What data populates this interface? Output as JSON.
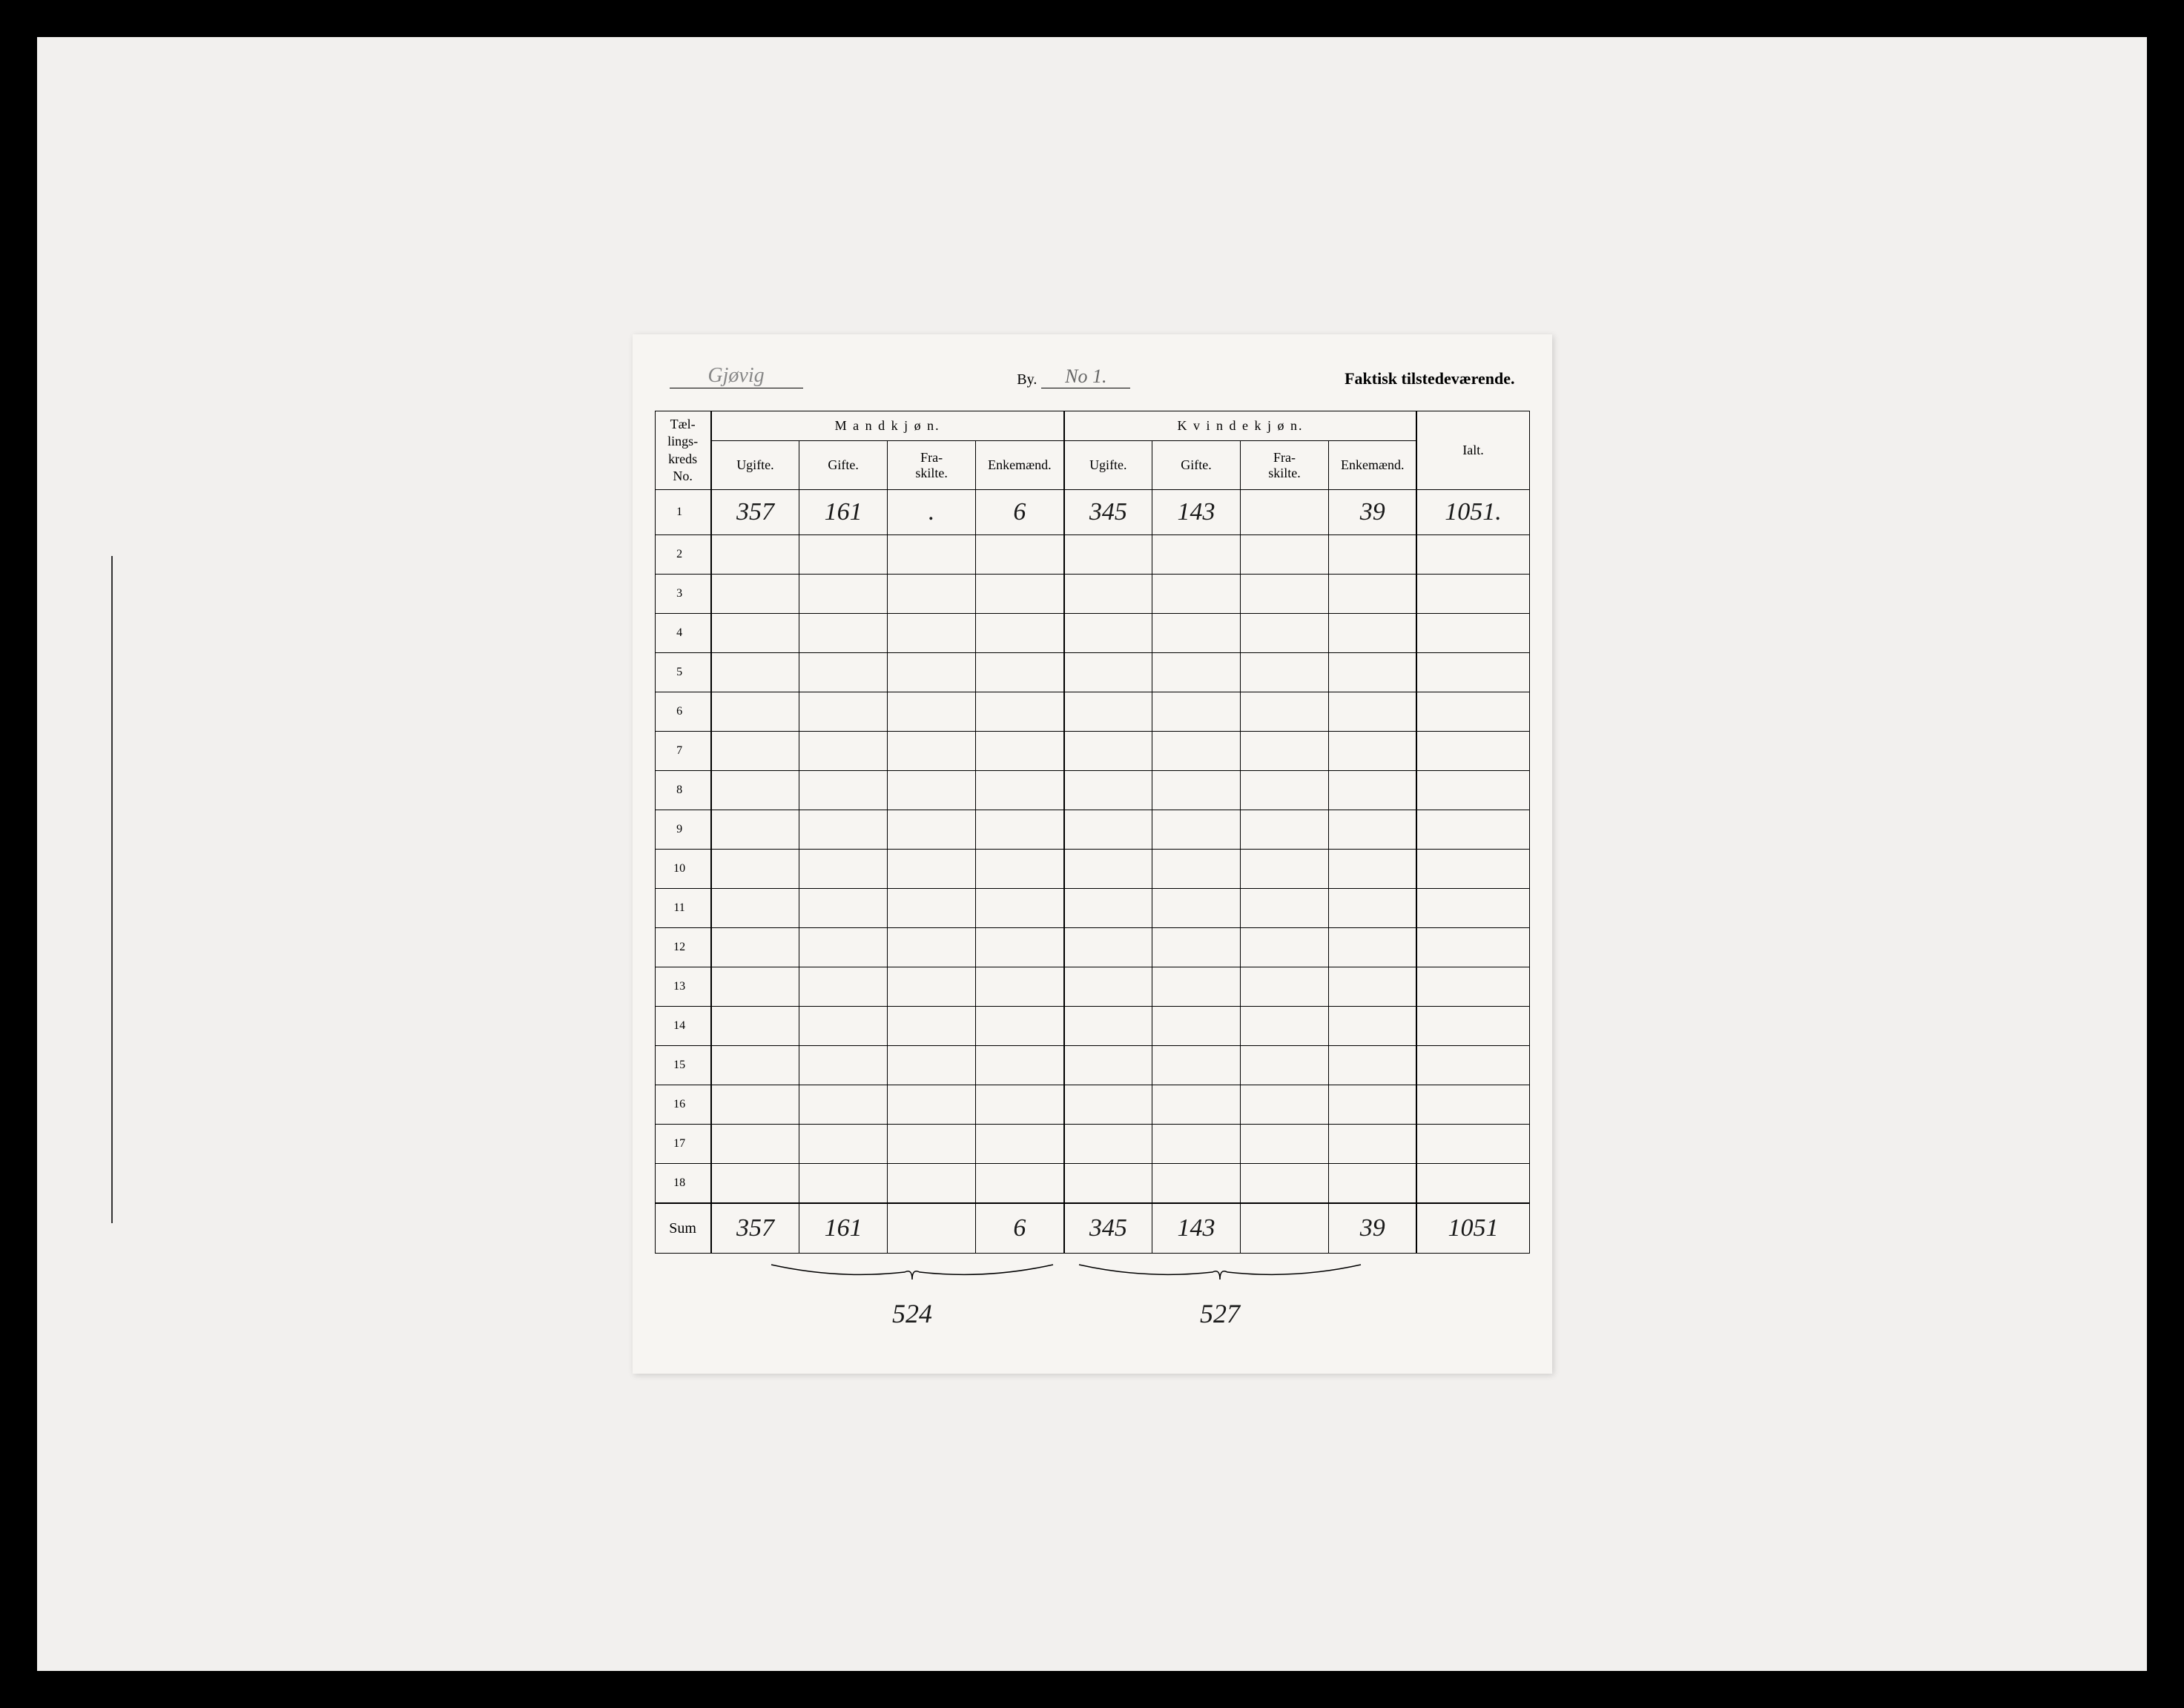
{
  "header": {
    "place_name": "Gjøvig",
    "by_label": "By.",
    "by_value": "No 1.",
    "title_right": "Faktisk tilstedeværende."
  },
  "table": {
    "rowno_header": "Tæl-\nlings-\nkreds\nNo.",
    "group_male": "M a n d k j ø n.",
    "group_female": "K v i n d e k j ø n.",
    "ialt_header": "Ialt.",
    "subheaders": {
      "ugifte": "Ugifte.",
      "gifte": "Gifte.",
      "fraskilte": "Fra-\nskilte.",
      "enkemaend": "Enkemænd.",
      "enkemaend_f": "Enkemænd."
    },
    "rows": [
      {
        "no": "1",
        "m_ugifte": "357",
        "m_gifte": "161",
        "m_fraskilte": ".",
        "m_enke": "6",
        "k_ugifte": "345",
        "k_gifte": "143",
        "k_fraskilte": "",
        "k_enke": "39",
        "ialt": "1051."
      },
      {
        "no": "2"
      },
      {
        "no": "3"
      },
      {
        "no": "4"
      },
      {
        "no": "5"
      },
      {
        "no": "6"
      },
      {
        "no": "7"
      },
      {
        "no": "8"
      },
      {
        "no": "9"
      },
      {
        "no": "10"
      },
      {
        "no": "11"
      },
      {
        "no": "12"
      },
      {
        "no": "13"
      },
      {
        "no": "14"
      },
      {
        "no": "15"
      },
      {
        "no": "16"
      },
      {
        "no": "17"
      },
      {
        "no": "18"
      }
    ],
    "sum_label": "Sum",
    "sum": {
      "m_ugifte": "357",
      "m_gifte": "161",
      "m_fraskilte": "",
      "m_enke": "6",
      "k_ugifte": "345",
      "k_gifte": "143",
      "k_fraskilte": "",
      "k_enke": "39",
      "ialt": "1051"
    }
  },
  "subtotals": {
    "male": "524",
    "female": "527"
  },
  "styling": {
    "background_color": "#000000",
    "paper_color": "#f2f0ee",
    "document_color": "#f7f5f2",
    "ink_color": "#1a1a1a",
    "handwriting_font": "cursive italic",
    "print_font": "Times New Roman serif",
    "header_fontsize": 22,
    "subheader_fontsize": 18,
    "data_fontsize": 34,
    "rowno_fontsize": 16,
    "row_height_empty": 50,
    "row_height_data": 58,
    "border_color": "#000000",
    "border_width": 1,
    "heavy_border_width": 2.5
  }
}
